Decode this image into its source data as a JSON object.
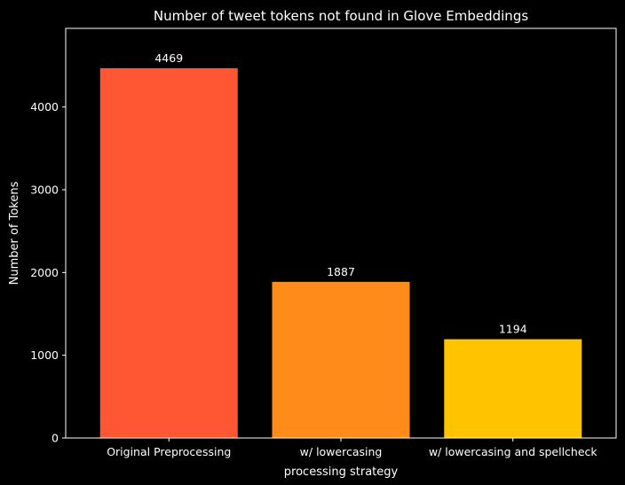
{
  "chart_data": {
    "type": "bar",
    "title": "Number of tweet tokens not found in Glove Embeddings",
    "xlabel": "processing strategy",
    "ylabel": "Number of Tokens",
    "categories": [
      "Original Preprocessing",
      "w/ lowercasing",
      "w/ lowercasing and spellcheck"
    ],
    "values": [
      4469,
      1887,
      1194
    ],
    "data_labels": [
      "4469",
      "1887",
      "1194"
    ],
    "bar_colors": [
      "#ff5733",
      "#ff8c1a",
      "#ffc300"
    ],
    "yticks": [
      0,
      1000,
      2000,
      3000,
      4000
    ],
    "ytick_labels": [
      "0",
      "1000",
      "2000",
      "3000",
      "4000"
    ],
    "ylim": [
      0,
      4950
    ],
    "grid": false,
    "legend": "none",
    "background": "#000000",
    "foreground": "#ffffff"
  }
}
